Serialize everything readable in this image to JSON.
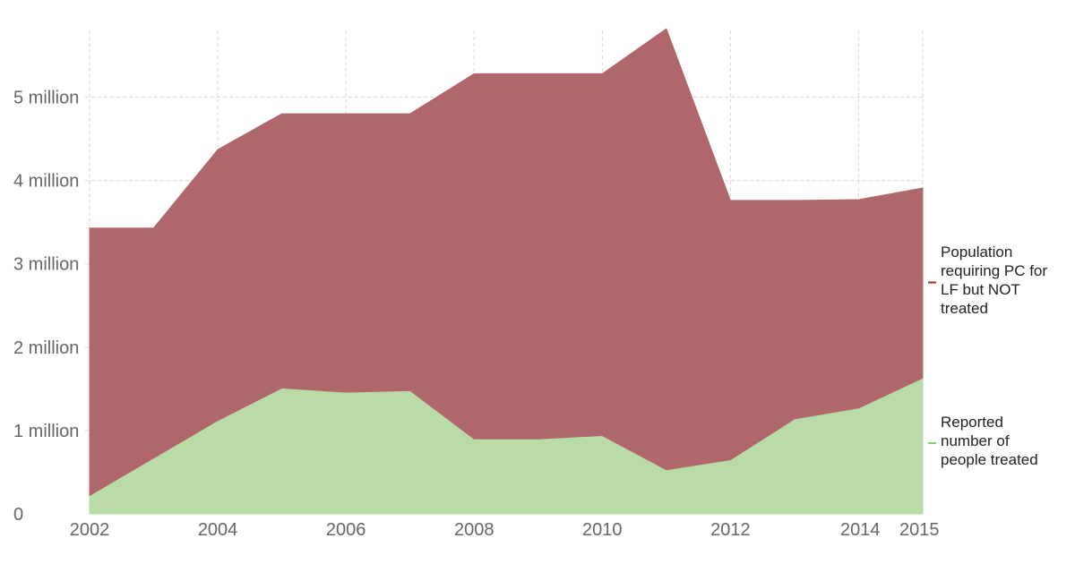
{
  "chart_data": {
    "type": "area",
    "stacked": true,
    "x": [
      2002,
      2003,
      2004,
      2005,
      2006,
      2007,
      2008,
      2009,
      2010,
      2011,
      2012,
      2013,
      2014,
      2015
    ],
    "x_ticks": [
      2002,
      2004,
      2006,
      2008,
      2010,
      2012,
      2014,
      2015
    ],
    "x_tick_labels": [
      "2002",
      "2004",
      "2006",
      "2008",
      "2010",
      "2012",
      "2014",
      "2015"
    ],
    "y_ticks": [
      0,
      1000000,
      2000000,
      3000000,
      4000000,
      5000000
    ],
    "y_tick_labels": [
      "0",
      "1 million",
      "2 million",
      "3 million",
      "4 million",
      "5 million"
    ],
    "ylim": [
      0,
      5800000
    ],
    "grid": true,
    "legend_position": "right",
    "series": [
      {
        "name": "Reported number of people treated",
        "color": "#b8dba8",
        "values": [
          220000,
          670000,
          1120000,
          1510000,
          1460000,
          1480000,
          900000,
          900000,
          940000,
          530000,
          650000,
          1140000,
          1270000,
          1630000
        ]
      },
      {
        "name": "Population requiring PC for LF but NOT treated",
        "color": "#b0676c",
        "values": [
          3210000,
          2760000,
          3250000,
          3290000,
          3340000,
          3320000,
          4380000,
          4380000,
          4340000,
          5290000,
          3110000,
          2620000,
          2500000,
          2280000
        ]
      }
    ]
  },
  "legend": {
    "items": [
      {
        "lines": [
          "Population",
          "requiring PC for",
          "LF but NOT",
          "treated"
        ],
        "color": "#9e2a2f"
      },
      {
        "lines": [
          "Reported",
          "number of",
          "people treated"
        ],
        "color": "#8fce6e"
      }
    ]
  }
}
